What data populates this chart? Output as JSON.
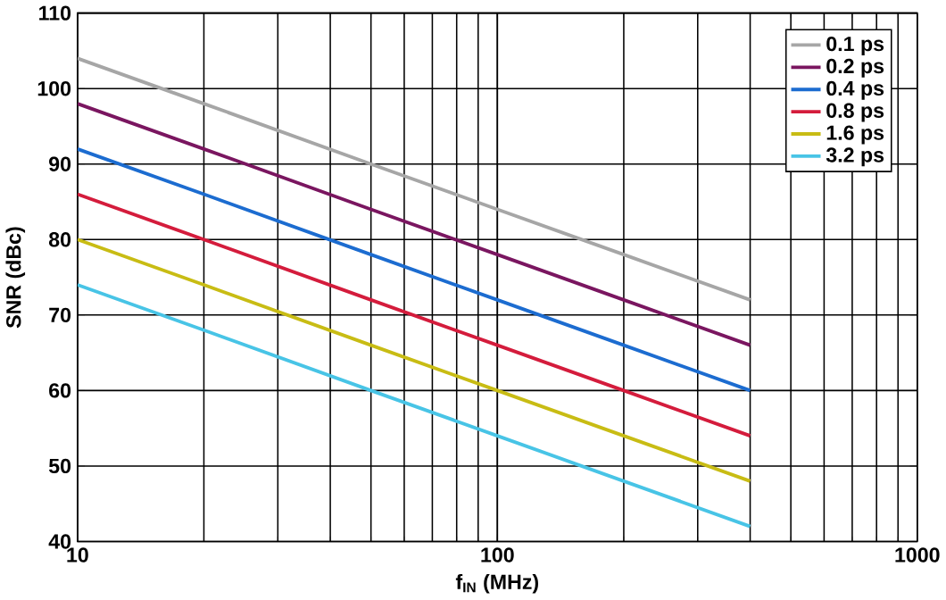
{
  "chart_data": {
    "type": "line",
    "xlabel": "f$_{IN}$ (MHz)",
    "ylabel": "SNR (dBc)",
    "log": "x",
    "xlim": [
      10,
      1000
    ],
    "xticks": [
      10,
      100,
      1000
    ],
    "ylim": [
      40,
      110
    ],
    "yticks": [
      40,
      50,
      60,
      70,
      80,
      90,
      100,
      110
    ],
    "grid": true,
    "legend": "top right",
    "marker": "none",
    "line_style": "solid",
    "x": [
      10,
      20,
      50,
      100,
      200,
      400
    ],
    "series": [
      {
        "name": "0.1 ps",
        "color": "#a6a6a6",
        "values": [
          104,
          98,
          90,
          84,
          78,
          72
        ]
      },
      {
        "name": "0.2 ps",
        "color": "#7a1660",
        "values": [
          98,
          92,
          84,
          78,
          72,
          66
        ]
      },
      {
        "name": "0.4 ps",
        "color": "#1c6cd0",
        "values": [
          92,
          86,
          78,
          72,
          66,
          60
        ]
      },
      {
        "name": "0.8 ps",
        "color": "#d41c3c",
        "values": [
          86,
          80,
          72,
          66,
          60,
          54
        ]
      },
      {
        "name": "1.6 ps",
        "color": "#c8bc14",
        "values": [
          80,
          74,
          66,
          60,
          54,
          48
        ]
      },
      {
        "name": "3.2 ps",
        "color": "#48c4e6",
        "values": [
          74,
          68,
          60,
          54,
          48,
          42
        ]
      }
    ]
  }
}
